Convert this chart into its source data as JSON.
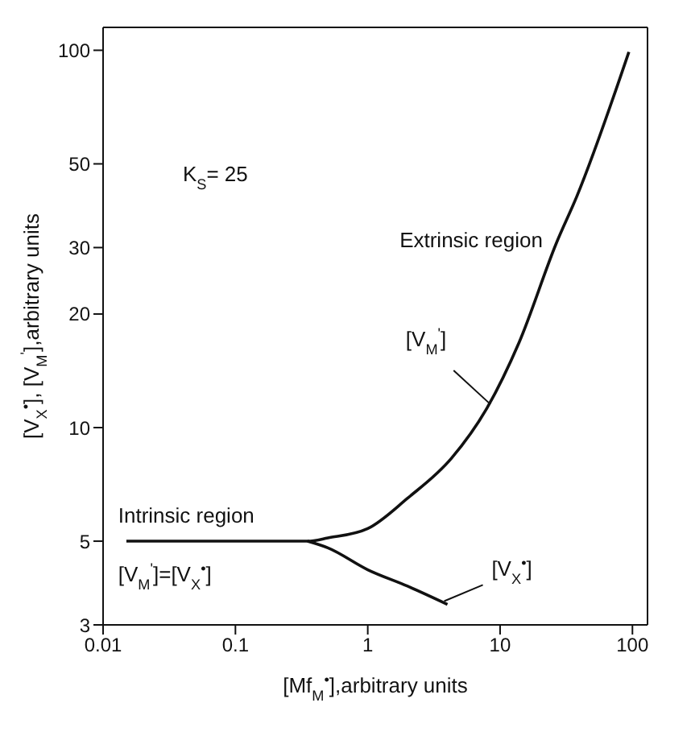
{
  "chart_data": {
    "type": "line",
    "xlabel": "[Mf$_{M}$$^{•}$],arbitrary units",
    "ylabel": "[V$_{X}$$^{•}$], [V$_{M}$$^{'}$],arbitrary units",
    "log": "xy",
    "xlim": [
      0.01,
      130
    ],
    "ylim": [
      3,
      115
    ],
    "xticks": [
      0.01,
      0.1,
      1,
      10,
      100
    ],
    "yticks": [
      3,
      5,
      10,
      20,
      30,
      50,
      100
    ],
    "marker": "none",
    "line_style": "solid",
    "annotations": [
      "K$_{S}$= 25",
      "Intrinsic region",
      "Extrinsic region",
      "[V$_{M}$$^{'}$]=[V$_{X}$$^{•}$]"
    ],
    "series": [
      {
        "name": "[V$_{M}$$^{'}$]",
        "color": "#111111",
        "x": [
          0.015,
          0.1,
          0.35,
          0.5,
          1,
          2,
          4.3,
          8,
          13.9,
          26.8,
          38,
          94
        ],
        "values": [
          5,
          5,
          5,
          5.1,
          5.4,
          6.5,
          8.3,
          11.3,
          16.8,
          31,
          41,
          99
        ]
      },
      {
        "name": "[V$_{X}$$^{•}$]",
        "color": "#111111",
        "x": [
          0.35,
          0.5,
          1,
          2,
          4
        ],
        "values": [
          5,
          4.8,
          4.2,
          3.8,
          3.4
        ]
      }
    ]
  }
}
